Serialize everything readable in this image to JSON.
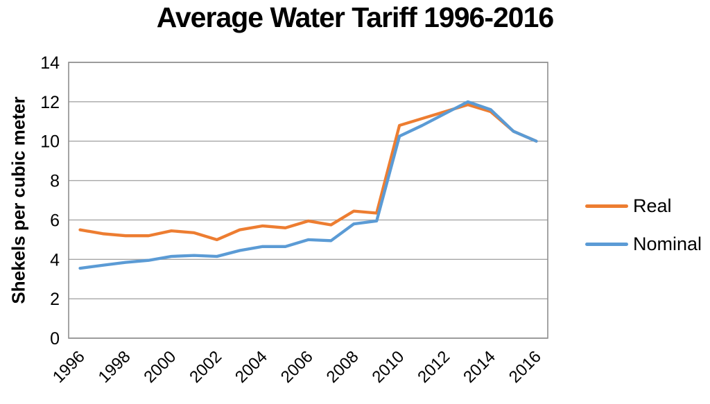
{
  "chart_data": {
    "type": "line",
    "title": "Average Water Tariff 1996-2016",
    "xlabel": "",
    "ylabel": "Shekels per cubic meter",
    "ylim": [
      0,
      14
    ],
    "yticks": [
      0,
      2,
      4,
      6,
      8,
      10,
      12,
      14
    ],
    "x": [
      1996,
      1997,
      1998,
      1999,
      2000,
      2001,
      2002,
      2003,
      2004,
      2005,
      2006,
      2007,
      2008,
      2009,
      2010,
      2011,
      2012,
      2013,
      2014,
      2015,
      2016
    ],
    "x_tick_labels": [
      "1996",
      "1998",
      "2000",
      "2002",
      "2004",
      "2006",
      "2008",
      "2010",
      "2012",
      "2014",
      "2016"
    ],
    "grid": "horizontal",
    "legend_position": "right",
    "series": [
      {
        "name": "Real",
        "color": "#ED7D31",
        "values": [
          5.5,
          5.3,
          5.2,
          5.2,
          5.45,
          5.35,
          5.0,
          5.5,
          5.7,
          5.6,
          5.95,
          5.75,
          6.45,
          6.35,
          10.8,
          11.15,
          11.5,
          11.85,
          11.5,
          10.5,
          10.0
        ]
      },
      {
        "name": "Nominal",
        "color": "#5B9BD5",
        "values": [
          3.55,
          3.7,
          3.85,
          3.95,
          4.15,
          4.2,
          4.15,
          4.45,
          4.65,
          4.65,
          5.0,
          4.95,
          5.8,
          5.95,
          10.25,
          10.8,
          11.4,
          12.0,
          11.6,
          10.5,
          10.0
        ]
      }
    ],
    "colors": {
      "gridline": "#A6A6A6",
      "plot_border": "#8E8E8E",
      "text": "#000000",
      "background": "#FFFFFF"
    }
  }
}
